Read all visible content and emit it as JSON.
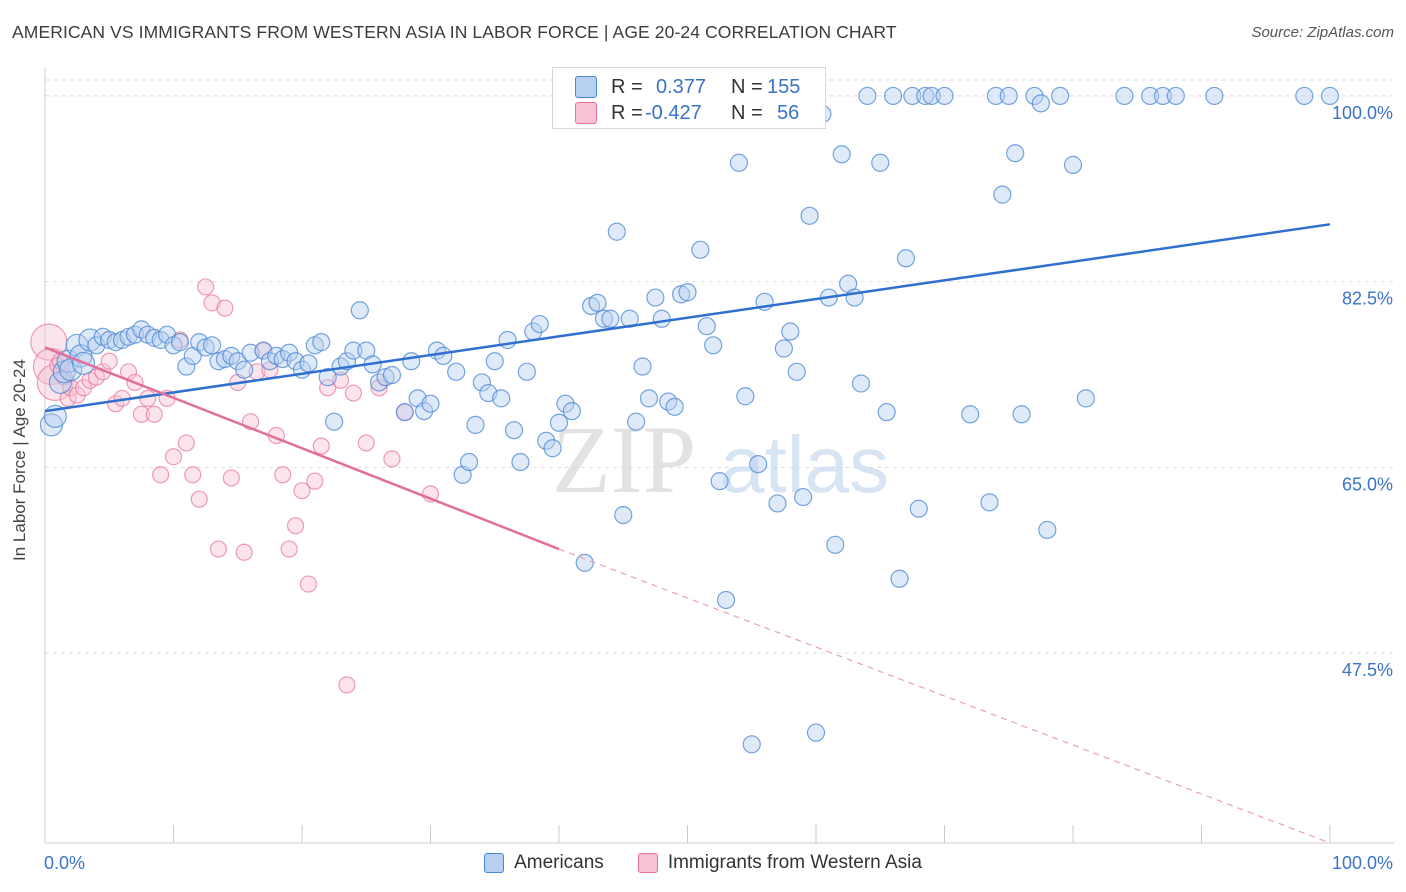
{
  "title": "AMERICAN VS IMMIGRANTS FROM WESTERN ASIA IN LABOR FORCE | AGE 20-24 CORRELATION CHART",
  "source": "Source: ZipAtlas.com",
  "watermark": {
    "zip": "ZIP",
    "atlas": "atlas"
  },
  "legend_top": {
    "r_label": "R =",
    "n_label": "N =",
    "americans": {
      "r": "0.377",
      "n": "155"
    },
    "immigrants": {
      "r": "-0.427",
      "n": "56"
    }
  },
  "legend_bottom": {
    "americans": "Americans",
    "immigrants": "Immigrants from Western Asia"
  },
  "colors": {
    "blue": "#4a86d4",
    "blue_fill": "#b8d0f0",
    "pink": "#e8739a",
    "pink_fill": "#f6c3d3",
    "axis_text": "#3a73c8"
  },
  "chart_data": {
    "type": "scatter",
    "title": "AMERICAN VS IMMIGRANTS FROM WESTERN ASIA IN LABOR FORCE | AGE 20-24 CORRELATION CHART",
    "xlabel": "",
    "ylabel": "In Labor Force | Age 20-24",
    "xlim": [
      0,
      100
    ],
    "ylim": [
      29.6,
      101.5
    ],
    "x_tick_labels": [
      "0.0%",
      "100.0%"
    ],
    "y_ticks": [
      47.5,
      65.0,
      82.5,
      100.0
    ],
    "y_tick_labels": [
      "47.5%",
      "65.0%",
      "82.5%",
      "100.0%"
    ],
    "grid": true,
    "legend": "top-center",
    "series": [
      {
        "name": "Americans",
        "r": 0.377,
        "n": 155,
        "trend": {
          "x": [
            0,
            100
          ],
          "y": [
            70.3,
            87.9
          ]
        },
        "points": [
          [
            0.5,
            69
          ],
          [
            0.8,
            69.8
          ],
          [
            1.2,
            73
          ],
          [
            1.5,
            74
          ],
          [
            1.8,
            75
          ],
          [
            2,
            74.2
          ],
          [
            2.5,
            76.5
          ],
          [
            2.8,
            75.5
          ],
          [
            3,
            74.8
          ],
          [
            3.5,
            77
          ],
          [
            4,
            76.5
          ],
          [
            4.5,
            77.3
          ],
          [
            5,
            77
          ],
          [
            5.5,
            76.8
          ],
          [
            6,
            77
          ],
          [
            6.5,
            77.3
          ],
          [
            7,
            77.5
          ],
          [
            7.5,
            78
          ],
          [
            8,
            77.5
          ],
          [
            8.5,
            77.2
          ],
          [
            9,
            77
          ],
          [
            9.5,
            77.5
          ],
          [
            10,
            76.5
          ],
          [
            10.5,
            76.8
          ],
          [
            11,
            74.5
          ],
          [
            11.5,
            75.5
          ],
          [
            12,
            76.8
          ],
          [
            12.5,
            76.3
          ],
          [
            13,
            76.5
          ],
          [
            13.5,
            75
          ],
          [
            14,
            75.2
          ],
          [
            14.5,
            75.5
          ],
          [
            15,
            75
          ],
          [
            15.5,
            74.2
          ],
          [
            16,
            75.8
          ],
          [
            17,
            76
          ],
          [
            17.5,
            75
          ],
          [
            18,
            75.5
          ],
          [
            18.5,
            75.2
          ],
          [
            19,
            75.8
          ],
          [
            19.5,
            75
          ],
          [
            20,
            74.2
          ],
          [
            20.5,
            74.8
          ],
          [
            21,
            76.5
          ],
          [
            21.5,
            76.8
          ],
          [
            22,
            73.5
          ],
          [
            22.5,
            69.3
          ],
          [
            23,
            74.5
          ],
          [
            23.5,
            75
          ],
          [
            24,
            76
          ],
          [
            24.5,
            79.8
          ],
          [
            25,
            76
          ],
          [
            25.5,
            74.7
          ],
          [
            26,
            73
          ],
          [
            26.5,
            73.5
          ],
          [
            27,
            73.7
          ],
          [
            28,
            70.2
          ],
          [
            28.5,
            75
          ],
          [
            29,
            71.5
          ],
          [
            29.5,
            70.3
          ],
          [
            30,
            71
          ],
          [
            30.5,
            76
          ],
          [
            31,
            75.5
          ],
          [
            32,
            74
          ],
          [
            32.5,
            64.3
          ],
          [
            33,
            65.5
          ],
          [
            33.5,
            69
          ],
          [
            34,
            73
          ],
          [
            34.5,
            72
          ],
          [
            35,
            75
          ],
          [
            35.5,
            71.5
          ],
          [
            36,
            77
          ],
          [
            36.5,
            68.5
          ],
          [
            37,
            65.5
          ],
          [
            37.5,
            74
          ],
          [
            38,
            77.8
          ],
          [
            38.5,
            78.5
          ],
          [
            39,
            67.5
          ],
          [
            39.5,
            66.8
          ],
          [
            40,
            69.2
          ],
          [
            40.5,
            71
          ],
          [
            41,
            70.3
          ],
          [
            42,
            56
          ],
          [
            42.5,
            80.2
          ],
          [
            43,
            80.5
          ],
          [
            43.5,
            79
          ],
          [
            44,
            79
          ],
          [
            44.5,
            87.2
          ],
          [
            45,
            60.5
          ],
          [
            45.5,
            79
          ],
          [
            46,
            69.3
          ],
          [
            46.5,
            74.5
          ],
          [
            47,
            71.5
          ],
          [
            47.5,
            81
          ],
          [
            48,
            79
          ],
          [
            48.5,
            71.2
          ],
          [
            49,
            70.7
          ],
          [
            49.5,
            81.3
          ],
          [
            50,
            81.5
          ],
          [
            51,
            85.5
          ],
          [
            51.5,
            78.3
          ],
          [
            52,
            76.5
          ],
          [
            52.5,
            63.7
          ],
          [
            53,
            52.5
          ],
          [
            54,
            93.7
          ],
          [
            54.5,
            71.7
          ],
          [
            55,
            38.9
          ],
          [
            55.5,
            65.3
          ],
          [
            56,
            80.6
          ],
          [
            57,
            61.6
          ],
          [
            57.5,
            76.2
          ],
          [
            58,
            77.8
          ],
          [
            58.5,
            74
          ],
          [
            59,
            62.2
          ],
          [
            59.5,
            88.7
          ],
          [
            60,
            40
          ],
          [
            60.5,
            98.3
          ],
          [
            61,
            81
          ],
          [
            61.5,
            57.7
          ],
          [
            62,
            94.5
          ],
          [
            62.5,
            82.3
          ],
          [
            63,
            81
          ],
          [
            63.5,
            72.9
          ],
          [
            64,
            100
          ],
          [
            65,
            93.7
          ],
          [
            65.5,
            70.2
          ],
          [
            66,
            100
          ],
          [
            66.5,
            54.5
          ],
          [
            67,
            84.7
          ],
          [
            67.5,
            100
          ],
          [
            68,
            61.1
          ],
          [
            68.5,
            100
          ],
          [
            69,
            100
          ],
          [
            70,
            100
          ],
          [
            72,
            70
          ],
          [
            73.5,
            61.7
          ],
          [
            74,
            100
          ],
          [
            74.5,
            90.7
          ],
          [
            75,
            100
          ],
          [
            75.5,
            94.6
          ],
          [
            76,
            70
          ],
          [
            77,
            100
          ],
          [
            77.5,
            99.3
          ],
          [
            78,
            59.1
          ],
          [
            79,
            100
          ],
          [
            80,
            93.5
          ],
          [
            81,
            71.5
          ],
          [
            84,
            100
          ],
          [
            86,
            100
          ],
          [
            87,
            100
          ],
          [
            88,
            100
          ],
          [
            91,
            100
          ],
          [
            98,
            100
          ],
          [
            100,
            100
          ]
        ]
      },
      {
        "name": "Immigrants from Western Asia",
        "r": -0.427,
        "n": 56,
        "trend": {
          "x": [
            0,
            40
          ],
          "y": [
            76.3,
            57.3
          ]
        },
        "trend_extension": {
          "x": [
            40,
            100
          ],
          "y": [
            57.3,
            29.6
          ]
        },
        "points": [
          [
            0.3,
            76.8
          ],
          [
            0.5,
            74.5
          ],
          [
            0.8,
            73
          ],
          [
            1,
            74.6
          ],
          [
            1.2,
            75
          ],
          [
            1.5,
            73.5
          ],
          [
            1.8,
            71.5
          ],
          [
            2,
            72.5
          ],
          [
            2.5,
            71.8
          ],
          [
            3,
            72.5
          ],
          [
            3.5,
            73.2
          ],
          [
            4,
            73.5
          ],
          [
            4.5,
            74
          ],
          [
            5,
            75
          ],
          [
            5.5,
            71
          ],
          [
            6,
            71.5
          ],
          [
            6.5,
            74
          ],
          [
            7,
            73
          ],
          [
            7.5,
            70
          ],
          [
            8,
            71.5
          ],
          [
            8.5,
            70
          ],
          [
            9,
            64.3
          ],
          [
            9.5,
            71.5
          ],
          [
            10,
            66
          ],
          [
            10.5,
            77
          ],
          [
            11,
            67.3
          ],
          [
            11.5,
            64.3
          ],
          [
            12,
            62
          ],
          [
            12.5,
            82
          ],
          [
            13,
            80.5
          ],
          [
            13.5,
            57.3
          ],
          [
            14,
            80
          ],
          [
            14.5,
            64
          ],
          [
            15,
            73
          ],
          [
            15.5,
            57
          ],
          [
            16,
            69.3
          ],
          [
            16.5,
            74
          ],
          [
            17,
            76
          ],
          [
            17.5,
            74.2
          ],
          [
            18,
            68
          ],
          [
            18.5,
            64.3
          ],
          [
            19,
            57.3
          ],
          [
            19.5,
            59.5
          ],
          [
            20,
            62.8
          ],
          [
            20.5,
            54
          ],
          [
            21,
            63.7
          ],
          [
            21.5,
            67
          ],
          [
            22,
            72.5
          ],
          [
            23,
            73.2
          ],
          [
            23.5,
            44.5
          ],
          [
            24,
            72
          ],
          [
            25,
            67.3
          ],
          [
            26,
            72.5
          ],
          [
            27,
            65.8
          ],
          [
            28,
            70.2
          ],
          [
            30,
            62.5
          ]
        ]
      }
    ]
  }
}
